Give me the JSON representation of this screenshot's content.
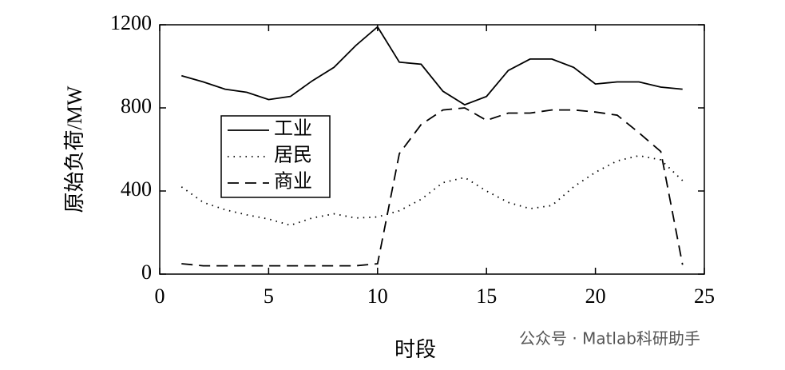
{
  "chart_data": {
    "type": "line",
    "xlabel": "时段",
    "ylabel": "原始负荷/MW",
    "watermark": "公众号 · Matlab科研助手",
    "x": [
      1,
      2,
      3,
      4,
      5,
      6,
      7,
      8,
      9,
      10,
      11,
      12,
      13,
      14,
      15,
      16,
      17,
      18,
      19,
      20,
      21,
      22,
      23,
      24
    ],
    "series": [
      {
        "name": "工业",
        "color": "#000000",
        "dash": "solid",
        "values": [
          955,
          925,
          890,
          875,
          840,
          855,
          930,
          995,
          1100,
          1190,
          1020,
          1010,
          880,
          815,
          855,
          980,
          1035,
          1035,
          995,
          915,
          925,
          925,
          900,
          890
        ]
      },
      {
        "name": "居民",
        "color": "#000000",
        "dash": "dotted",
        "values": [
          420,
          345,
          310,
          285,
          265,
          235,
          270,
          290,
          270,
          275,
          305,
          360,
          440,
          465,
          400,
          345,
          315,
          330,
          420,
          490,
          545,
          570,
          550,
          450
        ]
      },
      {
        "name": "商业",
        "color": "#000000",
        "dash": "dashed",
        "values": [
          50,
          40,
          40,
          40,
          40,
          40,
          40,
          40,
          40,
          50,
          580,
          720,
          790,
          800,
          740,
          775,
          775,
          790,
          790,
          780,
          765,
          680,
          590,
          45
        ]
      }
    ],
    "xlim": [
      0,
      25
    ],
    "xticks": [
      0,
      5,
      10,
      15,
      20,
      25
    ],
    "ylim": [
      0,
      1200
    ],
    "yticks": [
      0,
      400,
      800,
      1200
    ],
    "legend": "upper left"
  }
}
